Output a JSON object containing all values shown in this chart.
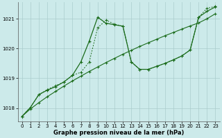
{
  "xlabel": "Graphe pression niveau de la mer (hPa)",
  "bg_color": "#cceaea",
  "grid_color": "#aacccc",
  "line_color": "#1a6b1a",
  "ylim": [
    1017.55,
    1021.55
  ],
  "xlim": [
    -0.5,
    23.5
  ],
  "yticks": [
    1018,
    1019,
    1020,
    1021
  ],
  "xticks": [
    0,
    1,
    2,
    3,
    4,
    5,
    6,
    7,
    8,
    9,
    10,
    11,
    12,
    13,
    14,
    15,
    16,
    17,
    18,
    19,
    20,
    21,
    22,
    23
  ],
  "s1_x": [
    0,
    1,
    2,
    3,
    4,
    5,
    6,
    7,
    8,
    9,
    10,
    11,
    12,
    13,
    14,
    15,
    16,
    17,
    18,
    19,
    20,
    21,
    22,
    23
  ],
  "s1_y": [
    1017.72,
    1017.97,
    1018.18,
    1018.38,
    1018.56,
    1018.74,
    1018.91,
    1019.07,
    1019.23,
    1019.38,
    1019.53,
    1019.67,
    1019.81,
    1019.94,
    1020.07,
    1020.19,
    1020.31,
    1020.43,
    1020.54,
    1020.65,
    1020.76,
    1020.86,
    1021.0,
    1021.17
  ],
  "s2_x": [
    0,
    1,
    2,
    3,
    4,
    5,
    6,
    7,
    8,
    9,
    10,
    11,
    12,
    13,
    14,
    15,
    16,
    17,
    18,
    19,
    20,
    21,
    22,
    23
  ],
  "s2_y": [
    1017.72,
    1018.02,
    1018.45,
    1018.6,
    1018.72,
    1018.88,
    1019.1,
    1019.55,
    1020.25,
    1021.05,
    1020.85,
    1020.8,
    1020.75,
    1019.55,
    1019.3,
    1019.3,
    1019.4,
    1019.5,
    1019.62,
    1019.75,
    1019.95,
    1021.05,
    1021.25,
    1021.4
  ],
  "s3_x": [
    0,
    1,
    2,
    3,
    4,
    5,
    6,
    7,
    8,
    9,
    10,
    11,
    12,
    13,
    14,
    15,
    16,
    17,
    18,
    19,
    20,
    21,
    22,
    23
  ],
  "s3_y": [
    1017.72,
    1018.02,
    1018.45,
    1018.62,
    1018.75,
    1018.88,
    1019.1,
    1019.2,
    1019.55,
    1020.7,
    1020.95,
    1020.82,
    1020.75,
    1019.55,
    1019.3,
    1019.3,
    1019.4,
    1019.5,
    1019.62,
    1019.75,
    1019.95,
    1021.05,
    1021.35,
    1021.42
  ],
  "ylabel_fontsize": 5,
  "xlabel_fontsize": 6,
  "tick_fontsize": 5
}
